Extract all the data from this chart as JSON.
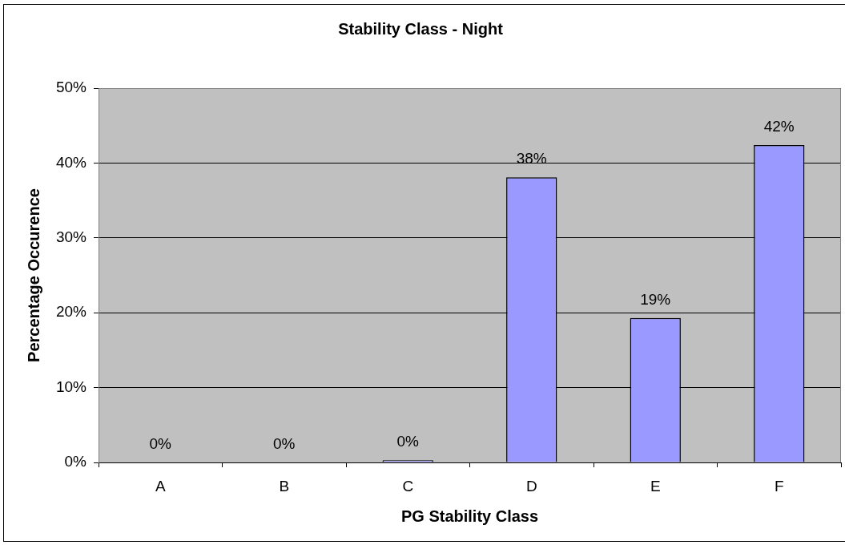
{
  "chart_data": {
    "type": "bar",
    "title": "Stability Class - Night",
    "xlabel": "PG Stability Class",
    "ylabel": "Percentage Occurence",
    "categories": [
      "A",
      "B",
      "C",
      "D",
      "E",
      "F"
    ],
    "values": [
      0,
      0,
      0.3,
      38.1,
      19.3,
      42.4
    ],
    "color": "#9999ff",
    "value_labels": [
      "0%",
      "0%",
      "0%",
      "38%",
      "19%",
      "42%"
    ],
    "ylim": [
      0,
      50
    ],
    "yticks": [
      {
        "value": 0,
        "label": "0%"
      },
      {
        "value": 10,
        "label": "10%"
      },
      {
        "value": 20,
        "label": "20%"
      },
      {
        "value": 30,
        "label": "30%"
      },
      {
        "value": 40,
        "label": "40%"
      },
      {
        "value": 50,
        "label": "50%"
      }
    ],
    "grid": "y"
  }
}
